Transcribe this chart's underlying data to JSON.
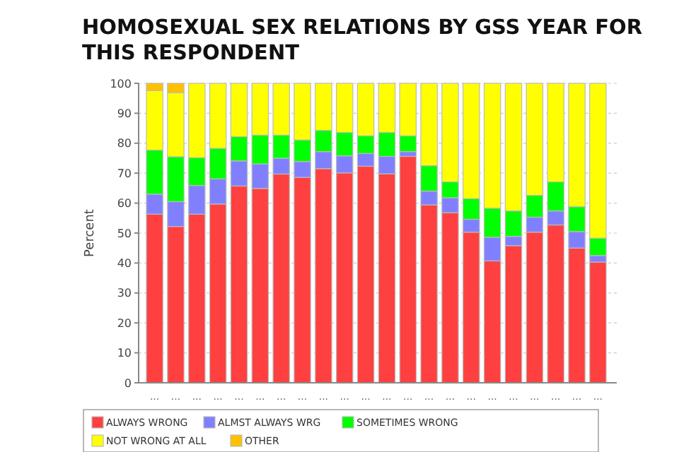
{
  "chart_data": {
    "type": "bar",
    "title": "HOMOSEXUAL SEX RELATIONS BY GSS YEAR FOR THIS RESPONDENT",
    "ylabel": "Percent",
    "stacked": true,
    "grid": "y",
    "legend": "bottom",
    "categories": [
      "...",
      "...",
      "...",
      "...",
      "...",
      "...",
      "...",
      "...",
      "...",
      "...",
      "...",
      "...",
      "...",
      "...",
      "...",
      "...",
      "...",
      "...",
      "...",
      "...",
      "...",
      "..."
    ],
    "ylim": [
      0,
      100
    ],
    "yticks": [
      0,
      10,
      20,
      30,
      40,
      50,
      60,
      70,
      80,
      90,
      100
    ],
    "series": [
      {
        "name": "ALWAYS WRONG",
        "color": "#ff4040",
        "values": [
          56.3,
          52.2,
          56.3,
          59.7,
          65.7,
          64.9,
          69.7,
          68.6,
          71.5,
          70.1,
          72.3,
          69.8,
          75.6,
          59.4,
          56.8,
          50.3,
          40.7,
          45.8,
          50.3,
          52.7,
          45.0,
          40.3
        ]
      },
      {
        "name": "ALMST ALWAYS WRG",
        "color": "#8080ff",
        "values": [
          6.7,
          8.3,
          9.6,
          8.4,
          8.4,
          8.2,
          5.3,
          5.3,
          5.7,
          5.7,
          4.3,
          5.8,
          1.6,
          4.6,
          5.0,
          4.3,
          7.9,
          3.1,
          5.0,
          4.7,
          5.5,
          2.2
        ]
      },
      {
        "name": "SOMETIMES WRONG",
        "color": "#00ff00",
        "values": [
          14.7,
          15.0,
          9.3,
          10.2,
          8.1,
          9.6,
          7.7,
          7.2,
          7.1,
          7.8,
          5.9,
          8.0,
          5.3,
          8.5,
          5.3,
          6.9,
          9.7,
          8.5,
          7.3,
          9.7,
          8.3,
          5.8
        ]
      },
      {
        "name": "NOT WRONG AT ALL",
        "color": "#ffff00",
        "values": [
          19.9,
          21.4,
          24.8,
          21.7,
          17.8,
          17.3,
          17.3,
          18.9,
          15.7,
          16.4,
          17.5,
          16.4,
          17.5,
          27.5,
          32.9,
          38.5,
          41.7,
          42.6,
          37.4,
          32.9,
          41.2,
          51.7
        ]
      },
      {
        "name": "OTHER",
        "color": "#ffc000",
        "values": [
          2.4,
          3.1,
          0,
          0,
          0,
          0,
          0,
          0,
          0,
          0,
          0,
          0,
          0,
          0,
          0,
          0,
          0,
          0,
          0,
          0,
          0,
          0
        ]
      }
    ]
  }
}
